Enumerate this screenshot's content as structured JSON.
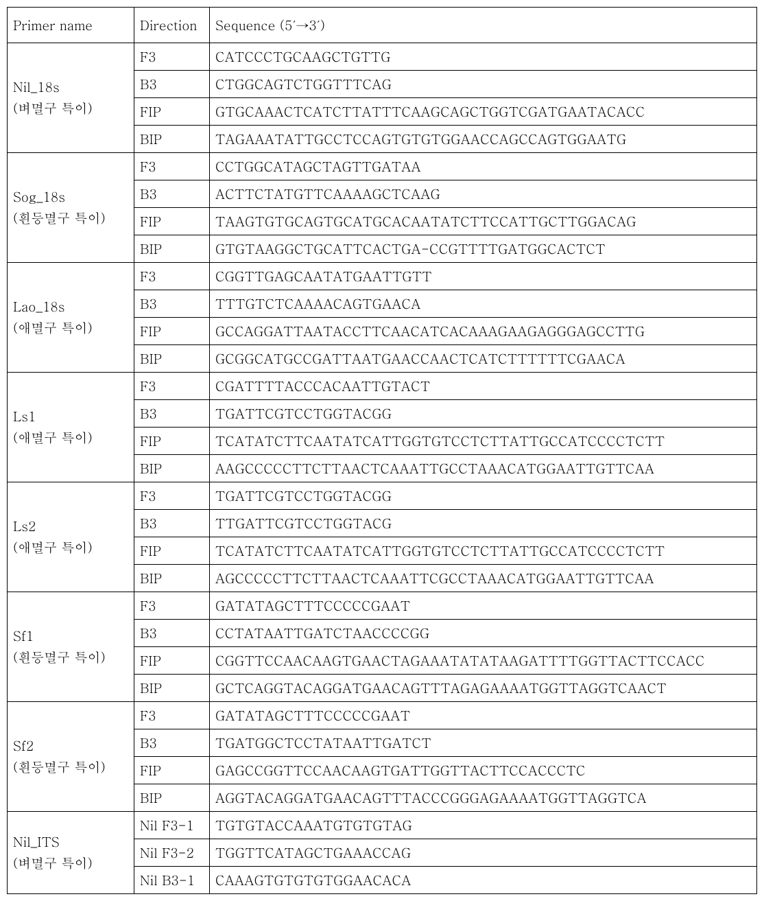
{
  "headers": {
    "primer": "Primer name",
    "direction": "Direction",
    "sequence": "Sequence (5′→3′)"
  },
  "groups": [
    {
      "name_line1": "Nil_18s",
      "name_line2": "(벼멸구 특이)",
      "rows": [
        {
          "direction": "F3",
          "sequence": "CATCCCTGCAAGCTGTTG"
        },
        {
          "direction": "B3",
          "sequence": "CTGGCAGTCTGGTTTCAG"
        },
        {
          "direction": "FIP",
          "sequence": "GTGCAAACTCATCTTATTTCAAGCAGCTGGTCGATGAATACACC"
        },
        {
          "direction": "BIP",
          "sequence": "TAGAAATATTGCCTCCAGTGTGTGGAACCAGCCAGTGGAATG"
        }
      ]
    },
    {
      "name_line1": "Sog_18s",
      "name_line2": "(흰등멸구 특이)",
      "rows": [
        {
          "direction": "F3",
          "sequence": "CCTGGCATAGCTAGTTGATAA"
        },
        {
          "direction": "B3",
          "sequence": "ACTTCTATGTTCAAAAGCTCAAG"
        },
        {
          "direction": "FIP",
          "sequence": "TAAGTGTGCAGTGCATGCACAATATCTTCCATTGCTTGGACAG"
        },
        {
          "direction": "BIP",
          "sequence": "GTGTAAGGCTGCATTCACTGA-CCGTTTTGATGGCACTCT"
        }
      ]
    },
    {
      "name_line1": "Lao_18s",
      "name_line2": "(애멸구 특이)",
      "rows": [
        {
          "direction": "F3",
          "sequence": "CGGTTGAGCAATATGAATTGTT"
        },
        {
          "direction": "B3",
          "sequence": "TTTGTCTCAAAACAGTGAACA"
        },
        {
          "direction": "FIP",
          "sequence": "GCCAGGATTAATACCTTCAACATCACAAAGAAGAGGGAGCCTTG"
        },
        {
          "direction": "BIP",
          "sequence": "GCGGCATGCCGATTAATGAACCAACTCATCTTTTTTCGAACA"
        }
      ]
    },
    {
      "name_line1": "Ls1",
      "name_line2": "(애멸구 특이)",
      "rows": [
        {
          "direction": "F3",
          "sequence": "CGATTTTACCCACAATTGTACT"
        },
        {
          "direction": "B3",
          "sequence": "TGATTCGTCCTGGTACGG"
        },
        {
          "direction": "FIP",
          "sequence": "TCATATCTTCAATATCATTGGTGTCCTCTTATTGCCATCCCCTCTT"
        },
        {
          "direction": "BIP",
          "sequence": "AAGCCCCCTTCTTAACTCAAATTGCCTAAACATGGAATTGTTCAA"
        }
      ]
    },
    {
      "name_line1": "Ls2",
      "name_line2": "(애멸구 특이)",
      "rows": [
        {
          "direction": "F3",
          "sequence": "TGATTCGTCCTGGTACGG"
        },
        {
          "direction": "B3",
          "sequence": "TTGATTCGTCCTGGTACG"
        },
        {
          "direction": "FIP",
          "sequence": "TCATATCTTCAATATCATTGGTGTCCTCTTATTGCCATCCCCTCTT"
        },
        {
          "direction": "BIP",
          "sequence": "AGCCCCCTTCTTAACTCAAATTCGCCTAAACATGGAATTGTTCAA"
        }
      ]
    },
    {
      "name_line1": "Sf1",
      "name_line2": "(흰등멸구 특이)",
      "rows": [
        {
          "direction": "F3",
          "sequence": "GATATAGCTTTCCCCCGAAT"
        },
        {
          "direction": "B3",
          "sequence": "CCTATAATTGATCTAACCCCGG"
        },
        {
          "direction": "FIP",
          "sequence": "CGGTTCCAACAAGTGAACTAGAAATATATAAGATTTTGGTTACTTCCACC"
        },
        {
          "direction": "BIP",
          "sequence": "GCTCAGGTACAGGATGAACAGTTTAGAGAAAATGGTTAGGTCAACT"
        }
      ]
    },
    {
      "name_line1": "Sf2",
      "name_line2": "(흰등멸구 특이)",
      "rows": [
        {
          "direction": "F3",
          "sequence": "GATATAGCTTTCCCCCGAAT"
        },
        {
          "direction": "B3",
          "sequence": "TGATGGCTCCTATAATTGATCT"
        },
        {
          "direction": "FIP",
          "sequence": "GAGCCGGTTCCAACAAGTGATTGGTTACTTCCACCCTC"
        },
        {
          "direction": "BIP",
          "sequence": "AGGTACAGGATGAACAGTTTACCCGGGAGAAAATGGTTAGGTCA"
        }
      ]
    },
    {
      "name_line1": "Nil_ITS",
      "name_line2": "(벼멸구 특이)",
      "rows": [
        {
          "direction": "Nil F3-1",
          "sequence": "TGTGTACCAAATGTGTGTAG"
        },
        {
          "direction": "Nil F3-2",
          "sequence": "TGGTTCATAGCTGAAACCAG"
        },
        {
          "direction": "Nil B3-1",
          "sequence": "CAAAGTGTGTGTGGAACACA"
        }
      ]
    }
  ]
}
